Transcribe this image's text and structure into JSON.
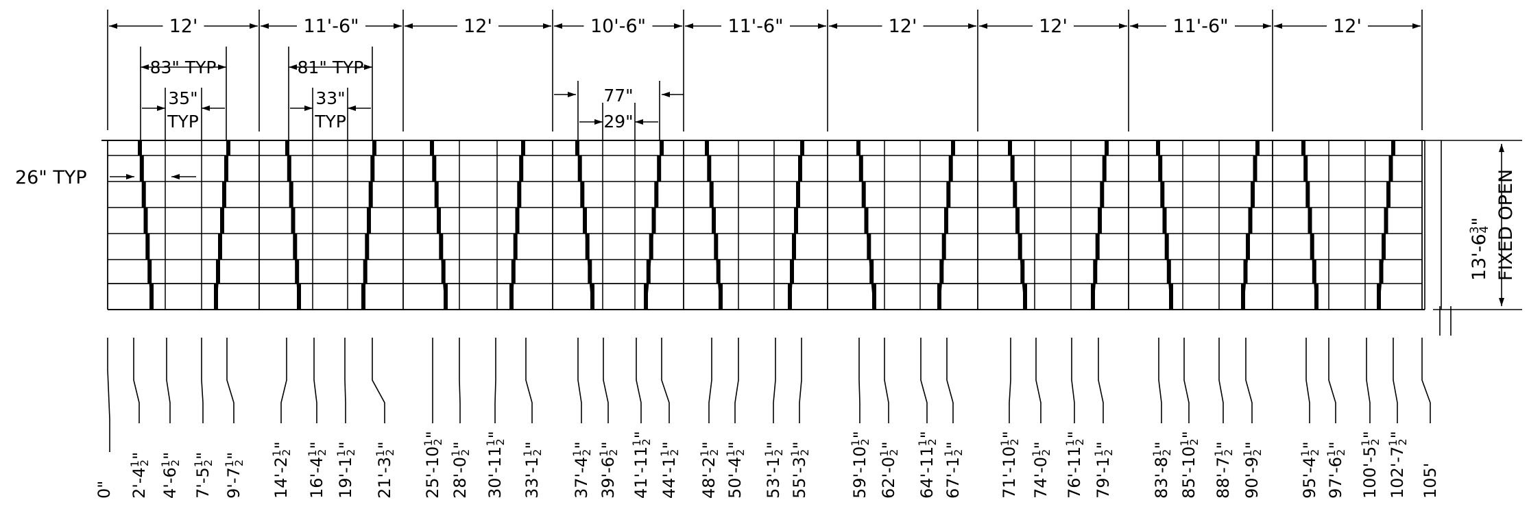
{
  "spans": [
    {
      "label": "12'"
    },
    {
      "label": "11'-6\""
    },
    {
      "label": "12'"
    },
    {
      "label": "10'-6\""
    },
    {
      "label": "11'-6\""
    },
    {
      "label": "12'"
    },
    {
      "label": "12'"
    },
    {
      "label": "11'-6\""
    },
    {
      "label": "12'"
    }
  ],
  "details": {
    "d1_outer": "83\" TYP",
    "d1_inner_a": "35\"",
    "d1_inner_b": "TYP",
    "d2_outer": "81\" TYP",
    "d2_inner_a": "33\"",
    "d2_inner_b": "TYP",
    "d3_outer": "77\"",
    "d3_inner": "29\""
  },
  "left_note": "26\" TYP",
  "right_note": {
    "height": "13'-6",
    "height_frac_num": "3",
    "height_frac_den": "4",
    "height_inch": "\"",
    "label": "FIXED OPEN"
  },
  "stations": [
    {
      "ft": "0\"",
      "n": "",
      "d": ""
    },
    {
      "ft": "2'-4",
      "n": "1",
      "d": "2"
    },
    {
      "ft": "4'-6",
      "n": "1",
      "d": "2"
    },
    {
      "ft": "7'-5",
      "n": "1",
      "d": "2"
    },
    {
      "ft": "9'-7",
      "n": "1",
      "d": "2"
    },
    {
      "ft": "14'-2",
      "n": "1",
      "d": "2"
    },
    {
      "ft": "16'-4",
      "n": "1",
      "d": "2"
    },
    {
      "ft": "19'-1",
      "n": "1",
      "d": "2"
    },
    {
      "ft": "21'-3",
      "n": "1",
      "d": "2"
    },
    {
      "ft": "25'-10",
      "n": "1",
      "d": "2"
    },
    {
      "ft": "28'-0",
      "n": "1",
      "d": "2"
    },
    {
      "ft": "30'-11",
      "n": "1",
      "d": "2"
    },
    {
      "ft": "33'-1",
      "n": "1",
      "d": "2"
    },
    {
      "ft": "37'-4",
      "n": "1",
      "d": "2"
    },
    {
      "ft": "39'-6",
      "n": "1",
      "d": "2"
    },
    {
      "ft": "41'-11",
      "n": "1",
      "d": "2"
    },
    {
      "ft": "44'-1",
      "n": "1",
      "d": "2"
    },
    {
      "ft": "48'-2",
      "n": "1",
      "d": "2"
    },
    {
      "ft": "50'-4",
      "n": "1",
      "d": "2"
    },
    {
      "ft": "53'-1",
      "n": "1",
      "d": "2"
    },
    {
      "ft": "55'-3",
      "n": "1",
      "d": "2"
    },
    {
      "ft": "59'-10",
      "n": "1",
      "d": "2"
    },
    {
      "ft": "62'-0",
      "n": "1",
      "d": "2"
    },
    {
      "ft": "64'-11",
      "n": "1",
      "d": "2"
    },
    {
      "ft": "67'-1",
      "n": "1",
      "d": "2"
    },
    {
      "ft": "71'-10",
      "n": "1",
      "d": "2"
    },
    {
      "ft": "74'-0",
      "n": "1",
      "d": "2"
    },
    {
      "ft": "76'-11",
      "n": "1",
      "d": "2"
    },
    {
      "ft": "79'-1",
      "n": "1",
      "d": "2"
    },
    {
      "ft": "83'-8",
      "n": "1",
      "d": "2"
    },
    {
      "ft": "85'-10",
      "n": "1",
      "d": "2"
    },
    {
      "ft": "88'-7",
      "n": "1",
      "d": "2"
    },
    {
      "ft": "90'-9",
      "n": "1",
      "d": "2"
    },
    {
      "ft": "95'-4",
      "n": "1",
      "d": "2"
    },
    {
      "ft": "97'-6",
      "n": "1",
      "d": "2"
    },
    {
      "ft": "100'-5",
      "n": "1",
      "d": "2"
    },
    {
      "ft": "102'-7",
      "n": "1",
      "d": "2"
    },
    {
      "ft": "105'",
      "n": "",
      "d": ""
    }
  ]
}
